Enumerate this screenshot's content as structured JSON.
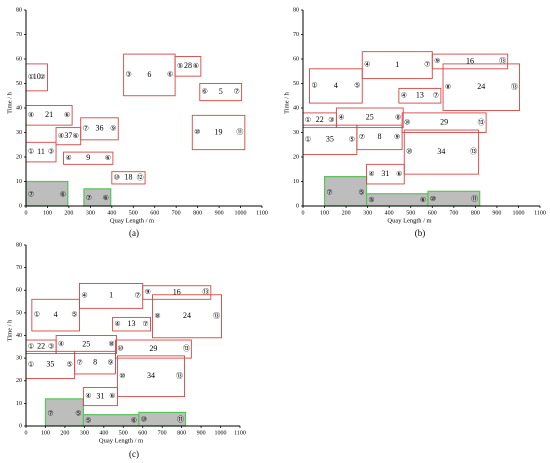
{
  "chart_data": [
    {
      "type": "gantt",
      "panel_label": "(a)",
      "xlabel": "Quay Length / m",
      "ylabel": "Time / h",
      "xlim": [
        0,
        1100
      ],
      "ylim": [
        0,
        80
      ],
      "xticks": [
        0,
        100,
        200,
        300,
        400,
        500,
        600,
        700,
        800,
        900,
        1000,
        1100
      ],
      "yticks": [
        0,
        10,
        20,
        30,
        40,
        50,
        60,
        70,
        80
      ],
      "vessels": [
        {
          "id": "10",
          "x": [
            0,
            100
          ],
          "y": [
            47,
            58
          ],
          "left": "①",
          "right": "②"
        },
        {
          "id": "21",
          "x": [
            0,
            215
          ],
          "y": [
            33,
            41
          ],
          "left": "④",
          "right": "⑥"
        },
        {
          "id": "11",
          "x": [
            0,
            140
          ],
          "y": [
            18,
            26
          ],
          "left": "①",
          "right": "③"
        },
        {
          "id": "37",
          "x": [
            140,
            255
          ],
          "y": [
            25,
            32
          ],
          "left": "④",
          "right": "⑥"
        },
        {
          "id": "36",
          "x": [
            255,
            430
          ],
          "y": [
            27,
            36
          ],
          "left": "⑦",
          "right": "⑨"
        },
        {
          "id": "9",
          "x": [
            175,
            405
          ],
          "y": [
            17,
            22
          ],
          "left": "④",
          "right": "⑥"
        },
        {
          "id": "18",
          "x": [
            400,
            555
          ],
          "y": [
            9,
            14
          ],
          "left": "⑩",
          "right": "⑫"
        },
        {
          "id": "6",
          "x": [
            455,
            695
          ],
          "y": [
            45,
            62
          ],
          "left": "③",
          "right": "⑥"
        },
        {
          "id": "28",
          "x": [
            695,
            815
          ],
          "y": [
            53,
            61
          ],
          "left": "⑤",
          "right": "⑥"
        },
        {
          "id": "5",
          "x": [
            810,
            1005
          ],
          "y": [
            43,
            50
          ],
          "left": "⑥",
          "right": "⑦"
        },
        {
          "id": "19",
          "x": [
            775,
            1020
          ],
          "y": [
            23,
            37
          ],
          "left": "⑩",
          "right": "⑪"
        }
      ],
      "occupied": [
        {
          "x": [
            0,
            195
          ],
          "y": [
            0,
            10
          ],
          "left": "⑦",
          "right": "⑥"
        },
        {
          "x": [
            270,
            395
          ],
          "y": [
            0,
            7
          ],
          "left": "⑦",
          "right": "⑥"
        }
      ]
    },
    {
      "type": "gantt",
      "panel_label": "(b)",
      "xlabel": "Quay Length / m",
      "ylabel": "Time / h",
      "xlim": [
        0,
        1100
      ],
      "ylim": [
        0,
        80
      ],
      "xticks": [
        0,
        100,
        200,
        300,
        400,
        500,
        600,
        700,
        800,
        900,
        1000,
        1100
      ],
      "yticks": [
        0,
        10,
        20,
        30,
        40,
        50,
        60,
        70,
        80
      ],
      "vessels": [
        {
          "id": "4",
          "x": [
            30,
            275
          ],
          "y": [
            42,
            56
          ],
          "left": "①",
          "right": "⑤"
        },
        {
          "id": "1",
          "x": [
            275,
            600
          ],
          "y": [
            52,
            63
          ],
          "left": "④",
          "right": "⑦"
        },
        {
          "id": "16",
          "x": [
            600,
            950
          ],
          "y": [
            56,
            62
          ],
          "left": "⑨",
          "right": "⑬"
        },
        {
          "id": "13",
          "x": [
            445,
            640
          ],
          "y": [
            42,
            48
          ],
          "left": "④",
          "right": "⑦"
        },
        {
          "id": "24",
          "x": [
            650,
            1005
          ],
          "y": [
            39,
            58
          ],
          "left": "⑧",
          "right": "⑬"
        },
        {
          "id": "22",
          "x": [
            0,
            155
          ],
          "y": [
            32,
            38
          ],
          "left": "①",
          "right": "③"
        },
        {
          "id": "25",
          "x": [
            155,
            465
          ],
          "y": [
            32,
            40
          ],
          "left": "④",
          "right": "⑧"
        },
        {
          "id": "29",
          "x": [
            460,
            850
          ],
          "y": [
            30,
            38
          ],
          "left": "⑩",
          "right": "⑬"
        },
        {
          "id": "35",
          "x": [
            0,
            250
          ],
          "y": [
            21,
            33
          ],
          "left": "①",
          "right": "⑤"
        },
        {
          "id": "8",
          "x": [
            250,
            460
          ],
          "y": [
            23,
            33
          ],
          "left": "⑦",
          "right": "⑨"
        },
        {
          "id": "31",
          "x": [
            295,
            470
          ],
          "y": [
            9,
            17
          ],
          "left": "④",
          "right": "⑥"
        },
        {
          "id": "34",
          "x": [
            470,
            815
          ],
          "y": [
            13,
            31
          ],
          "left": "⑩",
          "right": "⑬"
        }
      ],
      "occupied": [
        {
          "x": [
            100,
            295
          ],
          "y": [
            0,
            12
          ],
          "left": "⑦",
          "right": "⑤"
        },
        {
          "x": [
            295,
            580
          ],
          "y": [
            0,
            5
          ],
          "left": "⑤",
          "right": "⑥"
        },
        {
          "x": [
            580,
            820
          ],
          "y": [
            0,
            6
          ],
          "left": "⑩",
          "right": "⑪"
        }
      ]
    },
    {
      "type": "gantt",
      "panel_label": "(c)",
      "xlabel": "Quay Length / m",
      "ylabel": "Time / h",
      "xlim": [
        0,
        1100
      ],
      "ylim": [
        0,
        80
      ],
      "xticks": [
        0,
        100,
        200,
        300,
        400,
        500,
        600,
        700,
        800,
        900,
        1000,
        1100
      ],
      "yticks": [
        0,
        10,
        20,
        30,
        40,
        50,
        60,
        70,
        80
      ],
      "vessels": [
        {
          "id": "4",
          "x": [
            30,
            275
          ],
          "y": [
            42,
            56
          ],
          "left": "①",
          "right": "⑤"
        },
        {
          "id": "1",
          "x": [
            275,
            600
          ],
          "y": [
            52,
            63
          ],
          "left": "④",
          "right": "⑦"
        },
        {
          "id": "16",
          "x": [
            600,
            950
          ],
          "y": [
            56,
            62
          ],
          "left": "⑨",
          "right": "⑬"
        },
        {
          "id": "13",
          "x": [
            445,
            640
          ],
          "y": [
            42,
            48
          ],
          "left": "④",
          "right": "⑦"
        },
        {
          "id": "24",
          "x": [
            650,
            1005
          ],
          "y": [
            39,
            58
          ],
          "left": "⑧",
          "right": "⑬"
        },
        {
          "id": "22",
          "x": [
            0,
            155
          ],
          "y": [
            32,
            38
          ],
          "left": "①",
          "right": "③"
        },
        {
          "id": "25",
          "x": [
            155,
            465
          ],
          "y": [
            32,
            40
          ],
          "left": "④",
          "right": "⑧"
        },
        {
          "id": "29",
          "x": [
            460,
            850
          ],
          "y": [
            30,
            38
          ],
          "left": "⑩",
          "right": "⑬"
        },
        {
          "id": "35",
          "x": [
            0,
            250
          ],
          "y": [
            21,
            33
          ],
          "left": "①",
          "right": "⑤"
        },
        {
          "id": "8",
          "x": [
            250,
            460
          ],
          "y": [
            23,
            33
          ],
          "left": "⑦",
          "right": "⑨"
        },
        {
          "id": "31",
          "x": [
            295,
            470
          ],
          "y": [
            9,
            17
          ],
          "left": "④",
          "right": "⑥"
        },
        {
          "id": "34",
          "x": [
            470,
            815
          ],
          "y": [
            13,
            31
          ],
          "left": "⑩",
          "right": "⑬"
        }
      ],
      "occupied": [
        {
          "x": [
            100,
            295
          ],
          "y": [
            0,
            12
          ],
          "left": "⑦",
          "right": "⑤"
        },
        {
          "x": [
            295,
            580
          ],
          "y": [
            0,
            5
          ],
          "left": "⑤",
          "right": "⑥"
        },
        {
          "x": [
            580,
            820
          ],
          "y": [
            0,
            6
          ],
          "left": "⑩",
          "right": "⑪"
        }
      ]
    }
  ],
  "colors": {
    "vessel_stroke": "#d64545",
    "occupied_fill": "#bdbdbd",
    "occupied_stroke": "#58c45a",
    "axis": "#000000",
    "text": "#000000"
  }
}
